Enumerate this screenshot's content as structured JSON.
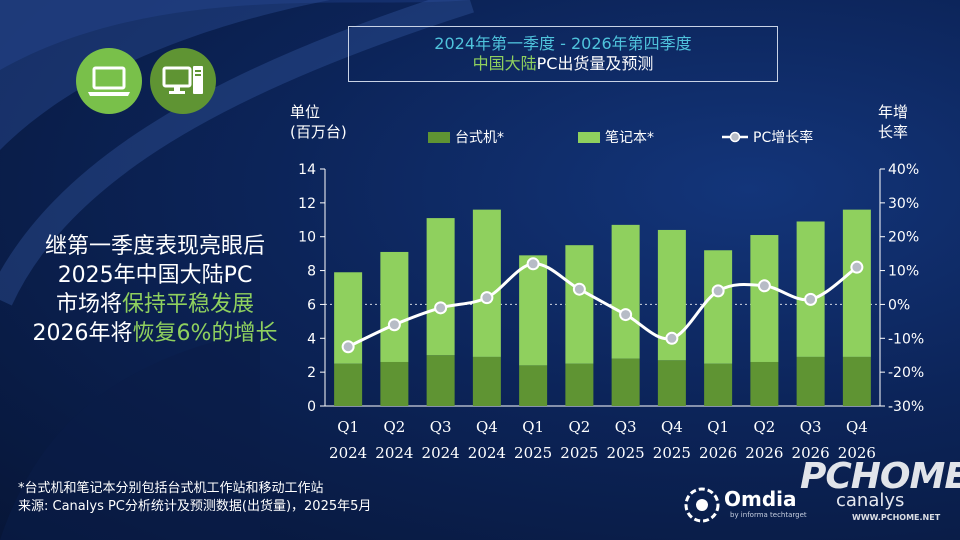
{
  "title": {
    "line1": "2024年第一季度 - 2026年第四季度",
    "line2_highlight": "中国大陆",
    "line2_rest": "PC出货量及预测"
  },
  "units": {
    "left": [
      "单位",
      "(百万台)"
    ],
    "right": [
      "年增",
      "长率"
    ]
  },
  "legend": {
    "desktop": "台式机*",
    "notebook": "笔记本*",
    "growth": "PC增长率"
  },
  "headline": {
    "line1": "继第一季度表现亮眼后",
    "line2": "2025年中国大陆PC",
    "line3_a": "市场将",
    "line3_b": "保持平稳发展",
    "line4_a": "2026年将",
    "line4_b": "恢复6%的增长"
  },
  "footnote": {
    "line1": "*台式机和笔记本分别包括台式机工作站和移动工作站",
    "line2": "来源: Canalys PC分析统计及预测数据(出货量)，2025年5月"
  },
  "branding": {
    "omdia": "Omdia",
    "omdia_sub": "by informa techtarget",
    "canalys": "canalys",
    "watermark": "PCHOME",
    "watermark_url": "WWW.PCHOME.NET"
  },
  "colors": {
    "desktop": "#5f9433",
    "notebook": "#8fd05e",
    "growth_line": "#ffffff",
    "title_accent": "#4fc3dc"
  },
  "icons": [
    "laptop-icon",
    "desktop-pc-icon"
  ],
  "chart_data": {
    "type": "bar",
    "stacked": true,
    "categories": [
      "Q1 2024",
      "Q2 2024",
      "Q3 2024",
      "Q4 2024",
      "Q1 2025",
      "Q2 2025",
      "Q3 2025",
      "Q4 2025",
      "Q1 2026",
      "Q2 2026",
      "Q3 2026",
      "Q4 2026"
    ],
    "x_tick_labels": [
      [
        "Q1",
        "2024"
      ],
      [
        "Q2",
        "2024"
      ],
      [
        "Q3",
        "2024"
      ],
      [
        "Q4",
        "2024"
      ],
      [
        "Q1",
        "2025"
      ],
      [
        "Q2",
        "2025"
      ],
      [
        "Q3",
        "2025"
      ],
      [
        "Q4",
        "2025"
      ],
      [
        "Q1",
        "2026"
      ],
      [
        "Q2",
        "2026"
      ],
      [
        "Q3",
        "2026"
      ],
      [
        "Q4",
        "2026"
      ]
    ],
    "series": [
      {
        "name": "台式机*",
        "values": [
          2.5,
          2.6,
          3.0,
          2.9,
          2.4,
          2.5,
          2.8,
          2.7,
          2.5,
          2.6,
          2.9,
          2.9
        ]
      },
      {
        "name": "笔记本*",
        "values": [
          5.4,
          6.5,
          8.1,
          8.7,
          6.5,
          7.0,
          7.9,
          7.7,
          6.7,
          7.5,
          8.0,
          8.7
        ]
      }
    ],
    "line_series": {
      "name": "PC增长率",
      "axis": "right",
      "values": [
        -12.5,
        -6,
        -1,
        2,
        12,
        4.5,
        -3,
        -10,
        4,
        5.5,
        1.5,
        11
      ]
    },
    "y_left": {
      "ylim": [
        0,
        14
      ],
      "ticks": [
        0,
        2,
        4,
        6,
        8,
        10,
        12,
        14
      ]
    },
    "y_right": {
      "ylim": [
        -30,
        40
      ],
      "ticks": [
        -30,
        -20,
        -10,
        0,
        10,
        20,
        30,
        40
      ],
      "tick_labels": [
        "-30%",
        "-20%",
        "-10%",
        "0%",
        "10%",
        "20%",
        "30%",
        "40%"
      ]
    },
    "legend_position": "top"
  }
}
